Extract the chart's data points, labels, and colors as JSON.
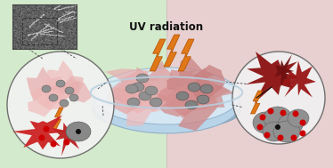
{
  "bg_left_color": "#d4eacc",
  "bg_right_color": "#e8d0d0",
  "title": "UV radiation",
  "title_fontsize": 8.5,
  "title_fontweight": "bold",
  "lightning_color": "#e07818",
  "lightning_edge": "#b05000",
  "cell_pink": "#e8a8a8",
  "cell_pink2": "#d49090",
  "cell_dark_red": "#991111",
  "cell_red": "#cc2222",
  "particle_gray": "#909090",
  "particle_dark": "#606060",
  "red_dot": "#cc0000",
  "black_dot": "#111111",
  "circle_face": "#f0f0f0",
  "circle_edge": "#666666",
  "petri_face": "#d8eaf5",
  "petri_edge": "#90b0c8",
  "petri_rim": "#b8d0e0",
  "petri_base": "#a8c0d0",
  "dashed_color": "#444444"
}
